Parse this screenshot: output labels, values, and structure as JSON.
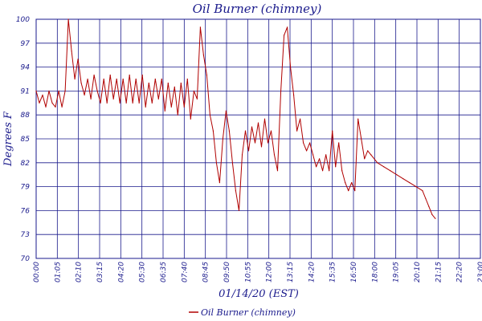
{
  "chart_data": {
    "type": "line",
    "title": "Oil Burner (chimney)",
    "xlabel": "01/14/20 (EST)",
    "ylabel": "Degrees F",
    "grid": true,
    "legend_position": "bottom-center",
    "colors": {
      "series": "#b00000",
      "grid": "#1a1a8c",
      "text": "#1a1a8c",
      "background": "#ffffff"
    },
    "ylim": [
      70,
      100
    ],
    "y_ticks": [
      "100",
      "97",
      "94",
      "91",
      "88",
      "85",
      "82",
      "79",
      "76",
      "73",
      "70"
    ],
    "xlim": [
      "00:00",
      "23:00"
    ],
    "x_ticks": [
      "00:00",
      "01:05",
      "02:10",
      "03:15",
      "04:20",
      "05:30",
      "06:35",
      "07:40",
      "08:45",
      "09:50",
      "10:55",
      "12:00",
      "13:15",
      "14:20",
      "15:35",
      "16:50",
      "18:00",
      "19:05",
      "20:10",
      "21:15",
      "22:20",
      "23:00"
    ],
    "series": [
      {
        "name": "Oil Burner (chimney)",
        "points": [
          [
            "00:00",
            91
          ],
          [
            "00:10",
            89.5
          ],
          [
            "00:20",
            90.5
          ],
          [
            "00:30",
            89
          ],
          [
            "00:40",
            91
          ],
          [
            "00:50",
            89.5
          ],
          [
            "01:00",
            89
          ],
          [
            "01:10",
            91
          ],
          [
            "01:20",
            89
          ],
          [
            "01:30",
            91
          ],
          [
            "01:40",
            100
          ],
          [
            "01:50",
            96
          ],
          [
            "02:00",
            92.5
          ],
          [
            "02:10",
            95
          ],
          [
            "02:20",
            92
          ],
          [
            "02:30",
            90.5
          ],
          [
            "02:40",
            92.5
          ],
          [
            "02:50",
            90
          ],
          [
            "03:00",
            93
          ],
          [
            "03:10",
            91
          ],
          [
            "03:20",
            89.5
          ],
          [
            "03:30",
            92.5
          ],
          [
            "03:40",
            89.5
          ],
          [
            "03:50",
            93
          ],
          [
            "04:00",
            90
          ],
          [
            "04:10",
            92.5
          ],
          [
            "04:20",
            89.5
          ],
          [
            "04:30",
            92.5
          ],
          [
            "04:40",
            89.5
          ],
          [
            "04:50",
            93
          ],
          [
            "05:00",
            89.5
          ],
          [
            "05:10",
            92.5
          ],
          [
            "05:20",
            89.5
          ],
          [
            "05:30",
            93
          ],
          [
            "05:40",
            89
          ],
          [
            "05:50",
            92
          ],
          [
            "06:00",
            89.5
          ],
          [
            "06:10",
            92.5
          ],
          [
            "06:20",
            90
          ],
          [
            "06:30",
            92.5
          ],
          [
            "06:40",
            88.5
          ],
          [
            "06:50",
            92
          ],
          [
            "07:00",
            89
          ],
          [
            "07:10",
            91.5
          ],
          [
            "07:20",
            88
          ],
          [
            "07:30",
            92
          ],
          [
            "07:40",
            89
          ],
          [
            "07:50",
            92.5
          ],
          [
            "08:00",
            87.5
          ],
          [
            "08:10",
            91
          ],
          [
            "08:20",
            90
          ],
          [
            "08:30",
            99
          ],
          [
            "08:40",
            95.5
          ],
          [
            "08:50",
            93
          ],
          [
            "09:00",
            88
          ],
          [
            "09:10",
            86
          ],
          [
            "09:20",
            82
          ],
          [
            "09:30",
            79.5
          ],
          [
            "09:40",
            85
          ],
          [
            "09:50",
            88.5
          ],
          [
            "10:00",
            86
          ],
          [
            "10:10",
            82
          ],
          [
            "10:20",
            78.5
          ],
          [
            "10:30",
            76
          ],
          [
            "10:40",
            83
          ],
          [
            "10:50",
            86
          ],
          [
            "11:00",
            83.5
          ],
          [
            "11:10",
            86.5
          ],
          [
            "11:20",
            84.5
          ],
          [
            "11:30",
            87
          ],
          [
            "11:40",
            84
          ],
          [
            "11:50",
            87.5
          ],
          [
            "12:00",
            84.5
          ],
          [
            "12:10",
            86
          ],
          [
            "12:20",
            83
          ],
          [
            "12:30",
            81
          ],
          [
            "12:40",
            91
          ],
          [
            "12:50",
            98
          ],
          [
            "13:00",
            99
          ],
          [
            "13:10",
            94
          ],
          [
            "13:20",
            90.5
          ],
          [
            "13:30",
            86
          ],
          [
            "13:40",
            87.5
          ],
          [
            "13:50",
            84.5
          ],
          [
            "14:00",
            83.5
          ],
          [
            "14:10",
            84.5
          ],
          [
            "14:20",
            83
          ],
          [
            "14:30",
            81.5
          ],
          [
            "14:40",
            82.5
          ],
          [
            "14:50",
            81
          ],
          [
            "15:00",
            83
          ],
          [
            "15:10",
            81
          ],
          [
            "15:20",
            86
          ],
          [
            "15:30",
            81.5
          ],
          [
            "15:40",
            84.5
          ],
          [
            "15:50",
            81
          ],
          [
            "16:00",
            79.5
          ],
          [
            "16:10",
            78.5
          ],
          [
            "16:20",
            79.5
          ],
          [
            "16:30",
            78.5
          ],
          [
            "16:40",
            87.5
          ],
          [
            "16:50",
            85
          ],
          [
            "17:00",
            82.5
          ],
          [
            "17:10",
            83.5
          ],
          [
            "17:20",
            83
          ],
          [
            "17:40",
            82
          ],
          [
            "18:00",
            81.5
          ],
          [
            "18:20",
            81
          ],
          [
            "18:40",
            80.5
          ],
          [
            "19:00",
            80
          ],
          [
            "19:20",
            79.5
          ],
          [
            "19:40",
            79
          ],
          [
            "20:00",
            78.5
          ],
          [
            "20:10",
            77.5
          ],
          [
            "20:20",
            76.5
          ],
          [
            "20:30",
            75.5
          ],
          [
            "20:40",
            75
          ]
        ]
      }
    ]
  }
}
